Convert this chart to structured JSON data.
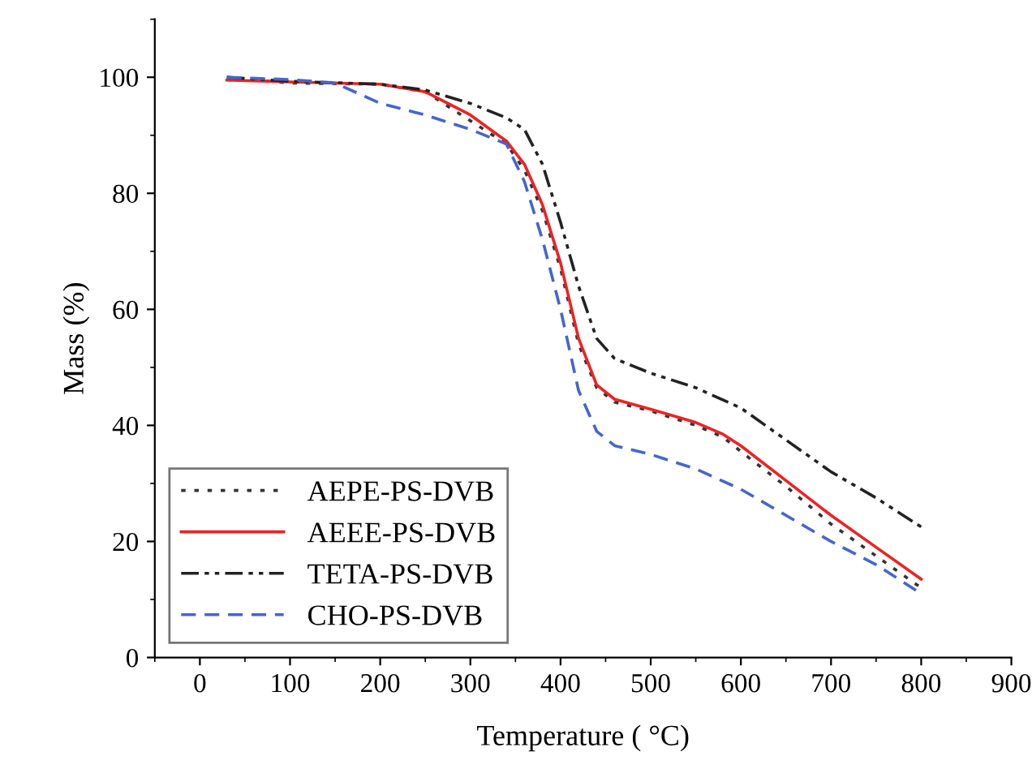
{
  "chart_data": {
    "type": "line",
    "xlabel": "Temperature ( °C)",
    "ylabel": "Mass (%)",
    "xlim": [
      -50,
      900
    ],
    "ylim": [
      0,
      110
    ],
    "xticks": [
      0,
      100,
      200,
      300,
      400,
      500,
      600,
      700,
      800,
      900
    ],
    "yticks": [
      0,
      20,
      40,
      60,
      80,
      100
    ],
    "grid": false,
    "legend": "bottom left",
    "marker": "none",
    "series": [
      {
        "name": "AEPE-PS-DVB",
        "color": "#333333",
        "line_style": "dotted",
        "x": [
          30,
          100,
          200,
          250,
          300,
          340,
          360,
          380,
          400,
          420,
          440,
          460,
          500,
          550,
          580,
          600,
          650,
          700,
          750,
          800
        ],
        "values": [
          100,
          99,
          98.8,
          97.5,
          92.5,
          88.5,
          84,
          77,
          67,
          54,
          46.5,
          44,
          42.5,
          40,
          38,
          35.5,
          29.5,
          23,
          17.5,
          12
        ]
      },
      {
        "name": "AEEE-PS-DVB",
        "color": "#ee2222",
        "line_style": "solid",
        "x": [
          30,
          100,
          200,
          250,
          300,
          340,
          360,
          380,
          400,
          420,
          440,
          460,
          500,
          550,
          580,
          600,
          650,
          700,
          750,
          800
        ],
        "values": [
          99.5,
          99.2,
          98.8,
          97.5,
          93.5,
          89,
          85,
          78,
          68,
          55,
          47,
          44.5,
          42.8,
          40.5,
          38.5,
          36.5,
          30.5,
          24.5,
          19,
          13.5
        ]
      },
      {
        "name": "TETA-PS-DVB",
        "color": "#222222",
        "line_style": "dashdotdot",
        "x": [
          30,
          100,
          200,
          250,
          300,
          340,
          360,
          380,
          400,
          420,
          440,
          460,
          500,
          550,
          600,
          650,
          700,
          750,
          800
        ],
        "values": [
          100,
          99.3,
          98.8,
          97.8,
          95.5,
          93,
          91,
          85,
          75,
          64,
          55,
          51.5,
          49,
          46.5,
          43,
          37.5,
          32,
          27.5,
          22.5
        ]
      },
      {
        "name": "CHO-PS-DVB",
        "color": "#4466cc",
        "line_style": "dashed",
        "x": [
          30,
          100,
          150,
          200,
          250,
          300,
          340,
          360,
          380,
          400,
          420,
          440,
          460,
          500,
          550,
          600,
          650,
          700,
          750,
          800
        ],
        "values": [
          100,
          99.6,
          99,
          95.5,
          93.5,
          91,
          88.5,
          82,
          72,
          60,
          46,
          39,
          36.5,
          35,
          32.5,
          29,
          24.5,
          20,
          16,
          11
        ]
      }
    ]
  }
}
